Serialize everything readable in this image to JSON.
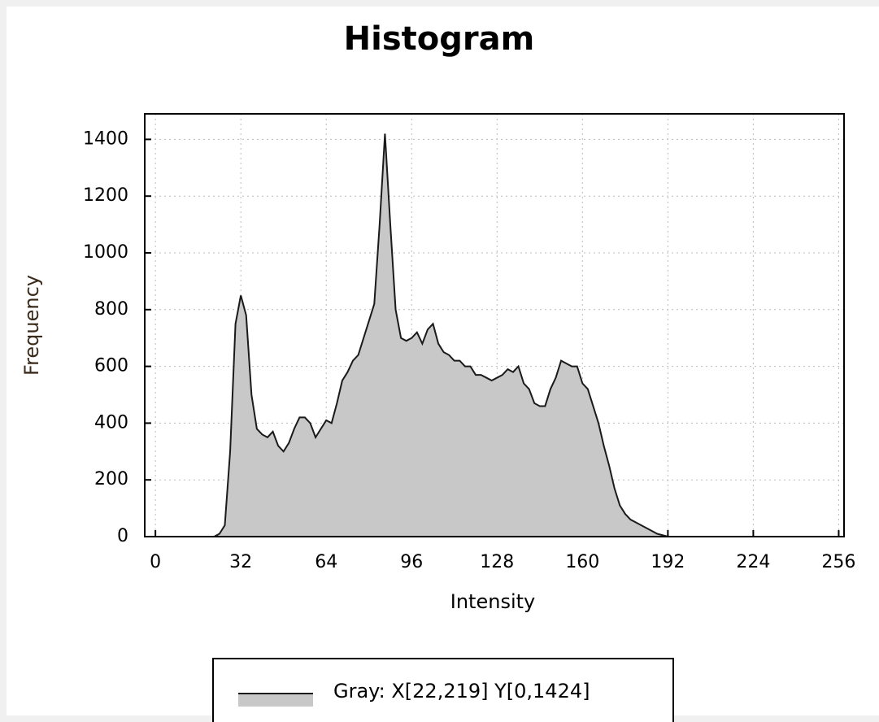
{
  "chart_data": {
    "type": "area",
    "title": "Histogram",
    "x_label": "Intensity",
    "y_label": "Frequency",
    "x": [
      20,
      22,
      24,
      26,
      28,
      30,
      32,
      34,
      36,
      38,
      40,
      42,
      44,
      46,
      48,
      50,
      52,
      54,
      56,
      58,
      60,
      62,
      64,
      66,
      68,
      70,
      72,
      74,
      76,
      78,
      80,
      82,
      84,
      86,
      88,
      90,
      92,
      94,
      96,
      98,
      100,
      102,
      104,
      106,
      108,
      110,
      112,
      114,
      116,
      118,
      120,
      122,
      124,
      126,
      128,
      130,
      132,
      134,
      136,
      138,
      140,
      142,
      144,
      146,
      148,
      150,
      152,
      154,
      156,
      158,
      160,
      162,
      164,
      166,
      168,
      170,
      172,
      174,
      176,
      178,
      180,
      182,
      184,
      186,
      188,
      190,
      192,
      196,
      200
    ],
    "series": [
      {
        "name": "Gray: X[22,219] Y[0,1424]",
        "color": "#c8c8c8",
        "line_color": "#1a1a1a",
        "values": [
          0,
          0,
          10,
          40,
          300,
          750,
          850,
          780,
          500,
          380,
          360,
          350,
          370,
          320,
          300,
          330,
          380,
          420,
          420,
          400,
          350,
          380,
          410,
          400,
          470,
          550,
          580,
          620,
          640,
          700,
          760,
          820,
          1100,
          1420,
          1100,
          800,
          700,
          690,
          700,
          720,
          680,
          730,
          750,
          680,
          650,
          640,
          620,
          620,
          600,
          600,
          570,
          570,
          560,
          550,
          560,
          570,
          590,
          580,
          600,
          540,
          520,
          470,
          460,
          460,
          520,
          560,
          620,
          610,
          600,
          600,
          540,
          520,
          460,
          400,
          320,
          250,
          170,
          110,
          80,
          60,
          50,
          40,
          30,
          20,
          10,
          5,
          0,
          0,
          0
        ]
      }
    ],
    "xlim": [
      -4,
      258
    ],
    "ylim": [
      0,
      1490
    ],
    "xticks": [
      0,
      32,
      64,
      96,
      128,
      160,
      192,
      224,
      256
    ],
    "yticks": [
      0,
      200,
      400,
      600,
      800,
      1000,
      1200,
      1400
    ],
    "grid": true
  }
}
